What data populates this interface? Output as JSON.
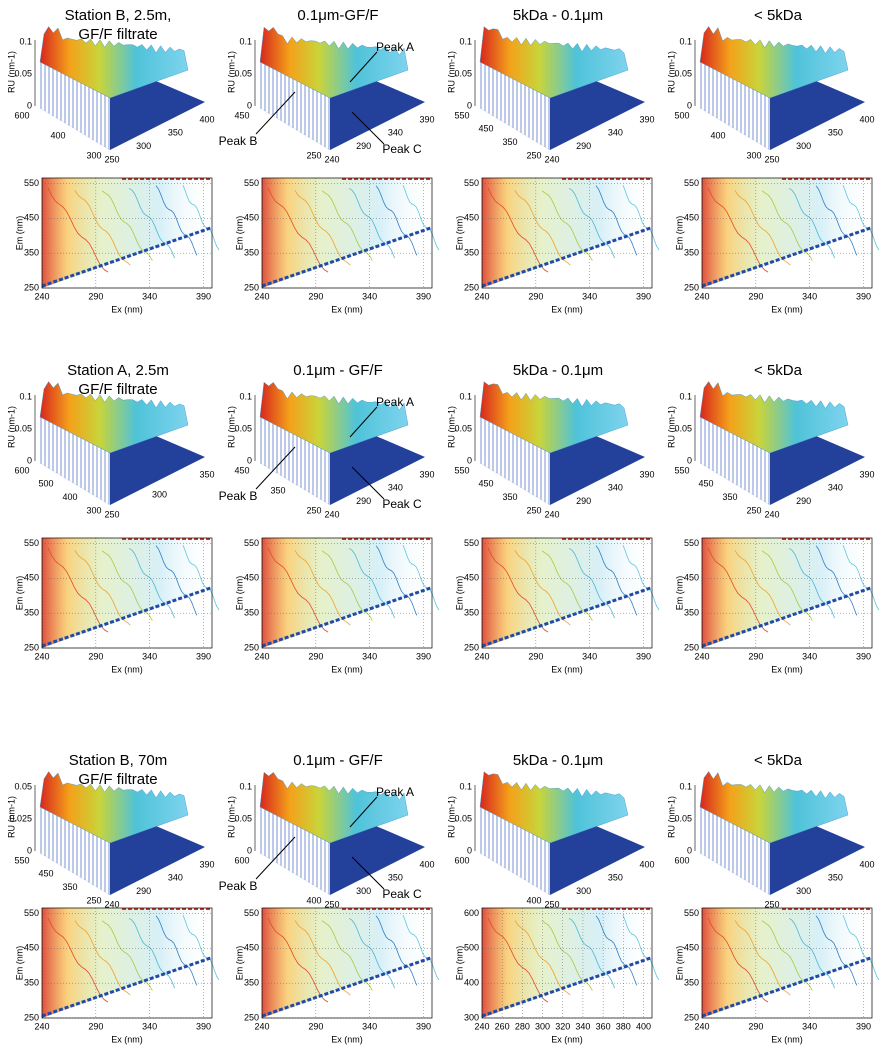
{
  "groups": [
    {
      "panels": [
        {
          "title": [
            "Station B, 2.5m,",
            "GF/F filtrate"
          ],
          "surface": {
            "zlabel": "RU (nm-1)",
            "zticks": [
              "0",
              "0.05",
              "0.1"
            ],
            "left_ticks": [
              "600",
              "400",
              "300"
            ],
            "right_ticks": [
              "250",
              "300",
              "350",
              "400"
            ]
          },
          "contour": {
            "ylabel": "Em (nm)",
            "xlabel": "Ex (nm)",
            "xticks": [
              "240",
              "290",
              "340",
              "390"
            ],
            "yticks": [
              "250",
              "350",
              "450",
              "550"
            ]
          }
        },
        {
          "title": [
            "0.1μm-GF/F"
          ],
          "surface": {
            "zlabel": "RU (nm-1)",
            "zticks": [
              "0",
              "0.05",
              "0.1"
            ],
            "left_ticks": [
              "450",
              "250"
            ],
            "right_ticks": [
              "240",
              "290",
              "340",
              "390"
            ],
            "peaks": [
              "Peak A",
              "Peak B",
              "Peak C"
            ]
          },
          "contour": {
            "ylabel": "Em (nm)",
            "xlabel": "Ex (nm)",
            "xticks": [
              "240",
              "290",
              "340",
              "390"
            ],
            "yticks": [
              "250",
              "350",
              "450",
              "550"
            ]
          }
        },
        {
          "title": [
            "5kDa - 0.1μm"
          ],
          "surface": {
            "zlabel": "RU (nm-1)",
            "zticks": [
              "0",
              "0.05",
              "0.1"
            ],
            "left_ticks": [
              "550",
              "450",
              "350",
              "250"
            ],
            "right_ticks": [
              "240",
              "290",
              "340",
              "390"
            ]
          },
          "contour": {
            "ylabel": "Em (nm)",
            "xlabel": "Ex (nm)",
            "xticks": [
              "240",
              "290",
              "340",
              "390"
            ],
            "yticks": [
              "250",
              "350",
              "450",
              "550"
            ]
          }
        },
        {
          "title": [
            "< 5kDa"
          ],
          "surface": {
            "zlabel": "RU (nm-1)",
            "zticks": [
              "0",
              "0.05",
              "0.1"
            ],
            "left_ticks": [
              "500",
              "400",
              "300"
            ],
            "right_ticks": [
              "250",
              "300",
              "350",
              "400"
            ]
          },
          "contour": {
            "ylabel": "Em (nm)",
            "xlabel": "Ex (nm)",
            "xticks": [
              "240",
              "290",
              "340",
              "390"
            ],
            "yticks": [
              "250",
              "350",
              "450",
              "550"
            ]
          }
        }
      ]
    },
    {
      "panels": [
        {
          "title": [
            "Station A, 2.5m",
            "GF/F filtrate"
          ],
          "surface": {
            "zlabel": "RU (nm-1)",
            "zticks": [
              "0",
              "0.05",
              "0.1"
            ],
            "left_ticks": [
              "600",
              "500",
              "400",
              "300"
            ],
            "right_ticks": [
              "250",
              "300",
              "350"
            ]
          },
          "contour": {
            "ylabel": "Em (nm)",
            "xlabel": "Ex (nm)",
            "xticks": [
              "240",
              "290",
              "340",
              "390"
            ],
            "yticks": [
              "250",
              "350",
              "450",
              "550"
            ]
          }
        },
        {
          "title": [
            "0.1μm - GF/F"
          ],
          "surface": {
            "zlabel": "RU (nm-1)",
            "zticks": [
              "0",
              "0.05",
              "0.1"
            ],
            "left_ticks": [
              "450",
              "350",
              "250"
            ],
            "right_ticks": [
              "240",
              "290",
              "340",
              "390"
            ],
            "peaks": [
              "Peak A",
              "Peak B",
              "Peak C"
            ]
          },
          "contour": {
            "ylabel": "Em (nm)",
            "xlabel": "Ex (nm)",
            "xticks": [
              "240",
              "290",
              "340",
              "390"
            ],
            "yticks": [
              "250",
              "350",
              "450",
              "550"
            ]
          }
        },
        {
          "title": [
            "5kDa - 0.1μm"
          ],
          "surface": {
            "zlabel": "RU (nm-1)",
            "zticks": [
              "0",
              "0.05",
              "0.1"
            ],
            "left_ticks": [
              "550",
              "450",
              "350",
              "250"
            ],
            "right_ticks": [
              "240",
              "290",
              "340",
              "390"
            ]
          },
          "contour": {
            "ylabel": "Em (nm)",
            "xlabel": "Ex (nm)",
            "xticks": [
              "240",
              "290",
              "340",
              "390"
            ],
            "yticks": [
              "250",
              "350",
              "450",
              "550"
            ]
          }
        },
        {
          "title": [
            "< 5kDa"
          ],
          "surface": {
            "zlabel": "RU (nm-1)",
            "zticks": [
              "0",
              "0.05",
              "0.1"
            ],
            "left_ticks": [
              "550",
              "450",
              "350",
              "250"
            ],
            "right_ticks": [
              "240",
              "290",
              "340",
              "390"
            ]
          },
          "contour": {
            "ylabel": "Em (nm)",
            "xlabel": "Ex (nm)",
            "xticks": [
              "240",
              "290",
              "340",
              "390"
            ],
            "yticks": [
              "250",
              "350",
              "450",
              "550"
            ]
          }
        }
      ]
    },
    {
      "panels": [
        {
          "title": [
            "Station B, 70m",
            "GF/F filtrate"
          ],
          "surface": {
            "zlabel": "RU (nm-1)",
            "zticks": [
              "0",
              "0.025",
              "0.05"
            ],
            "left_ticks": [
              "550",
              "450",
              "350",
              "250"
            ],
            "right_ticks": [
              "240",
              "290",
              "340",
              "390"
            ]
          },
          "contour": {
            "ylabel": "Em (nm)",
            "xlabel": "Ex (nm)",
            "xticks": [
              "240",
              "290",
              "340",
              "390"
            ],
            "yticks": [
              "250",
              "350",
              "450",
              "550"
            ]
          }
        },
        {
          "title": [
            "0.1μm - GF/F"
          ],
          "surface": {
            "zlabel": "RU (nm-1)",
            "zticks": [
              "0",
              "0.05",
              "0.1"
            ],
            "left_ticks": [
              "600",
              "400"
            ],
            "right_ticks": [
              "250",
              "300",
              "350",
              "400"
            ],
            "peaks": [
              "Peak A",
              "Peak B",
              "Peak C"
            ]
          },
          "contour": {
            "ylabel": "Em (nm)",
            "xlabel": "Ex (nm)",
            "xticks": [
              "240",
              "290",
              "340",
              "390"
            ],
            "yticks": [
              "250",
              "350",
              "450",
              "550"
            ]
          }
        },
        {
          "title": [
            "5kDa - 0.1μm"
          ],
          "surface": {
            "zlabel": "RU (nm-1)",
            "zticks": [
              "0",
              "0.05",
              "0.1"
            ],
            "left_ticks": [
              "600",
              "400"
            ],
            "right_ticks": [
              "250",
              "300",
              "350",
              "400"
            ]
          },
          "contour": {
            "ylabel": "Em (nm)",
            "xlabel": "Ex (nm)",
            "xticks": [
              "240",
              "260",
              "280",
              "300",
              "320",
              "340",
              "360",
              "380",
              "400"
            ],
            "yticks": [
              "300",
              "400",
              "500",
              "600"
            ]
          }
        },
        {
          "title": [
            "< 5kDa"
          ],
          "surface": {
            "zlabel": "RU (nm-1)",
            "zticks": [
              "0",
              "0.05",
              "0.1"
            ],
            "left_ticks": [
              "600"
            ],
            "right_ticks": [
              "250",
              "300",
              "350",
              "400"
            ]
          },
          "contour": {
            "ylabel": "Em (nm)",
            "xlabel": "Ex (nm)",
            "xticks": [
              "240",
              "290",
              "340",
              "390"
            ],
            "yticks": [
              "250",
              "350",
              "450",
              "550"
            ]
          }
        }
      ]
    }
  ]
}
